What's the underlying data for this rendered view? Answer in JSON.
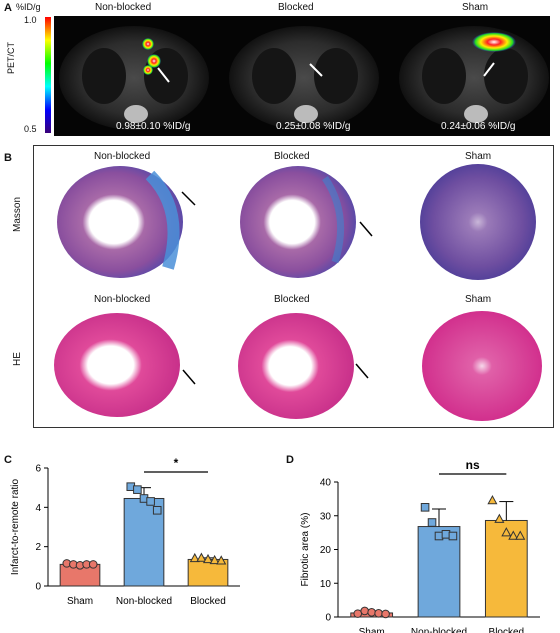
{
  "panelA": {
    "label": "A",
    "unit": "%ID/g",
    "scale_max": "1.0",
    "scale_min": "0.5",
    "side_label": "PET/CT",
    "columns": [
      "Non-blocked",
      "Blocked",
      "Sham"
    ],
    "values": [
      "0.98±0.10 %ID/g",
      "0.25±0.08 %ID/g",
      "0.24±0.06 %ID/g"
    ]
  },
  "panelB": {
    "label": "B",
    "row_labels": [
      "Masson",
      "HE"
    ],
    "masson_columns": [
      "Non-blocked",
      "Blocked",
      "Sham"
    ],
    "he_columns": [
      "Non-blocked",
      "Blocked",
      "Sham"
    ]
  },
  "chart_data": [
    {
      "panel": "C",
      "type": "bar",
      "categories": [
        "Sham",
        "Non-blocked",
        "Blocked"
      ],
      "values": [
        1.1,
        4.45,
        1.35
      ],
      "errors": [
        0.05,
        0.55,
        0.08
      ],
      "points": [
        [
          1.15,
          1.1,
          1.05,
          1.1,
          1.1
        ],
        [
          5.05,
          4.9,
          4.45,
          4.3,
          3.85
        ],
        [
          1.4,
          1.42,
          1.35,
          1.3,
          1.28
        ]
      ],
      "colors": [
        "#e8776a",
        "#6fa8dc",
        "#f6b93b"
      ],
      "markers": [
        "circle",
        "square",
        "triangle"
      ],
      "ylabel": "Infarct-to-remote ratio",
      "ylim": [
        0,
        6
      ],
      "yticks": [
        0,
        2,
        4,
        6
      ],
      "significance": "*"
    },
    {
      "panel": "D",
      "type": "bar",
      "categories": [
        "Sham",
        "Non-blocked",
        "Blocked"
      ],
      "values": [
        1.2,
        26.8,
        28.6
      ],
      "errors": [
        0.5,
        5.2,
        5.6
      ],
      "points": [
        [
          1.0,
          1.8,
          1.4,
          1.1,
          0.9
        ],
        [
          32.5,
          28.0,
          24.0,
          24.5,
          24.0
        ],
        [
          34.5,
          29.0,
          25.0,
          24.0,
          24.0
        ]
      ],
      "colors": [
        "#e8776a",
        "#6fa8dc",
        "#f6b93b"
      ],
      "markers": [
        "circle",
        "square",
        "triangle"
      ],
      "ylabel": "Fibrotic area (%)",
      "ylim": [
        0,
        40
      ],
      "yticks": [
        0,
        10,
        20,
        30,
        40
      ],
      "significance": "ns"
    }
  ]
}
